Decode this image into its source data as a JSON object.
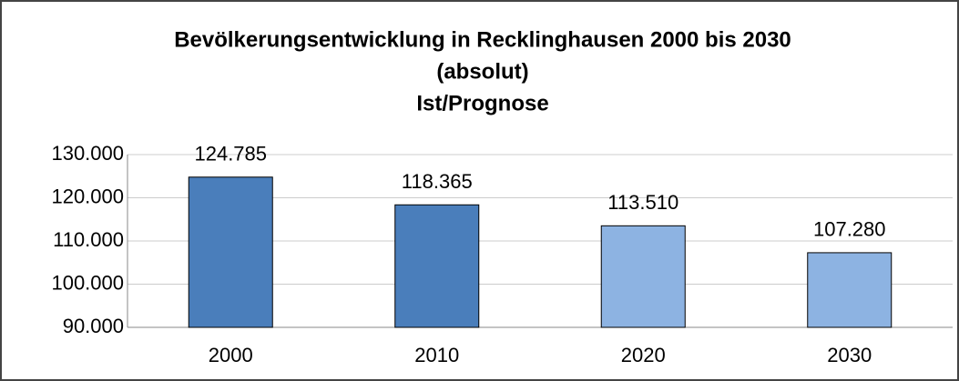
{
  "chart_data": {
    "type": "bar",
    "title": [
      "Bevölkerungsentwicklung in Recklinghausen 2000 bis 2030",
      "(absolut)",
      "Ist/Prognose"
    ],
    "categories": [
      "2000",
      "2010",
      "2020",
      "2030"
    ],
    "values": [
      124785,
      118365,
      113510,
      107280
    ],
    "value_labels": [
      "124.785",
      "118.365",
      "113.510",
      "107.280"
    ],
    "colors": [
      "#4a7ebb",
      "#4a7ebb",
      "#8db3e2",
      "#8db3e2"
    ],
    "ylim": [
      90000,
      130000
    ],
    "yticks": [
      {
        "value": 90000,
        "label": "90.000"
      },
      {
        "value": 100000,
        "label": "100.000"
      },
      {
        "value": 110000,
        "label": "110.000"
      },
      {
        "value": 120000,
        "label": "120.000"
      },
      {
        "value": 130000,
        "label": "130.000"
      }
    ],
    "grid": true
  }
}
